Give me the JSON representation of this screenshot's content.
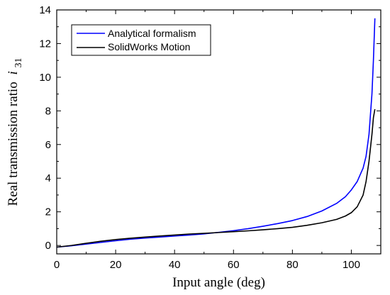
{
  "chart_data": {
    "type": "line",
    "title": "",
    "xlabel": "Input angle (deg)",
    "ylabel": "Real transmission ratio",
    "ylabel_symbol": "i",
    "ylabel_subscript": "31",
    "xlim": [
      0,
      110
    ],
    "ylim": [
      -0.5,
      14
    ],
    "x_ticks": [
      0,
      20,
      40,
      60,
      80,
      100
    ],
    "y_ticks": [
      0,
      2,
      4,
      6,
      8,
      10,
      12,
      14
    ],
    "grid": false,
    "legend_position": "top-left",
    "series": [
      {
        "name": "Analytical formalism",
        "color": "#0000ff",
        "points": [
          [
            0,
            -0.1
          ],
          [
            5,
            -0.02
          ],
          [
            10,
            0.08
          ],
          [
            15,
            0.18
          ],
          [
            20,
            0.28
          ],
          [
            25,
            0.37
          ],
          [
            30,
            0.44
          ],
          [
            35,
            0.5
          ],
          [
            40,
            0.56
          ],
          [
            45,
            0.62
          ],
          [
            50,
            0.69
          ],
          [
            55,
            0.78
          ],
          [
            60,
            0.88
          ],
          [
            65,
            1.0
          ],
          [
            70,
            1.14
          ],
          [
            75,
            1.3
          ],
          [
            80,
            1.48
          ],
          [
            85,
            1.72
          ],
          [
            90,
            2.05
          ],
          [
            95,
            2.5
          ],
          [
            98,
            2.9
          ],
          [
            100,
            3.3
          ],
          [
            102,
            3.8
          ],
          [
            104,
            4.6
          ],
          [
            105,
            5.3
          ],
          [
            106,
            6.6
          ],
          [
            107,
            9.0
          ],
          [
            107.5,
            11.0
          ],
          [
            108,
            13.5
          ]
        ]
      },
      {
        "name": "SolidWorks Motion",
        "color": "#000000",
        "points": [
          [
            0,
            -0.1
          ],
          [
            5,
            0.0
          ],
          [
            10,
            0.13
          ],
          [
            15,
            0.25
          ],
          [
            20,
            0.35
          ],
          [
            25,
            0.43
          ],
          [
            30,
            0.5
          ],
          [
            35,
            0.56
          ],
          [
            40,
            0.62
          ],
          [
            45,
            0.68
          ],
          [
            50,
            0.72
          ],
          [
            55,
            0.77
          ],
          [
            60,
            0.82
          ],
          [
            65,
            0.87
          ],
          [
            70,
            0.93
          ],
          [
            75,
            1.0
          ],
          [
            80,
            1.08
          ],
          [
            85,
            1.2
          ],
          [
            90,
            1.35
          ],
          [
            95,
            1.55
          ],
          [
            98,
            1.75
          ],
          [
            100,
            1.95
          ],
          [
            102,
            2.3
          ],
          [
            104,
            3.0
          ],
          [
            105,
            3.8
          ],
          [
            106,
            5.0
          ],
          [
            107,
            6.6
          ],
          [
            107.5,
            7.6
          ],
          [
            108,
            8.1
          ]
        ]
      }
    ]
  }
}
